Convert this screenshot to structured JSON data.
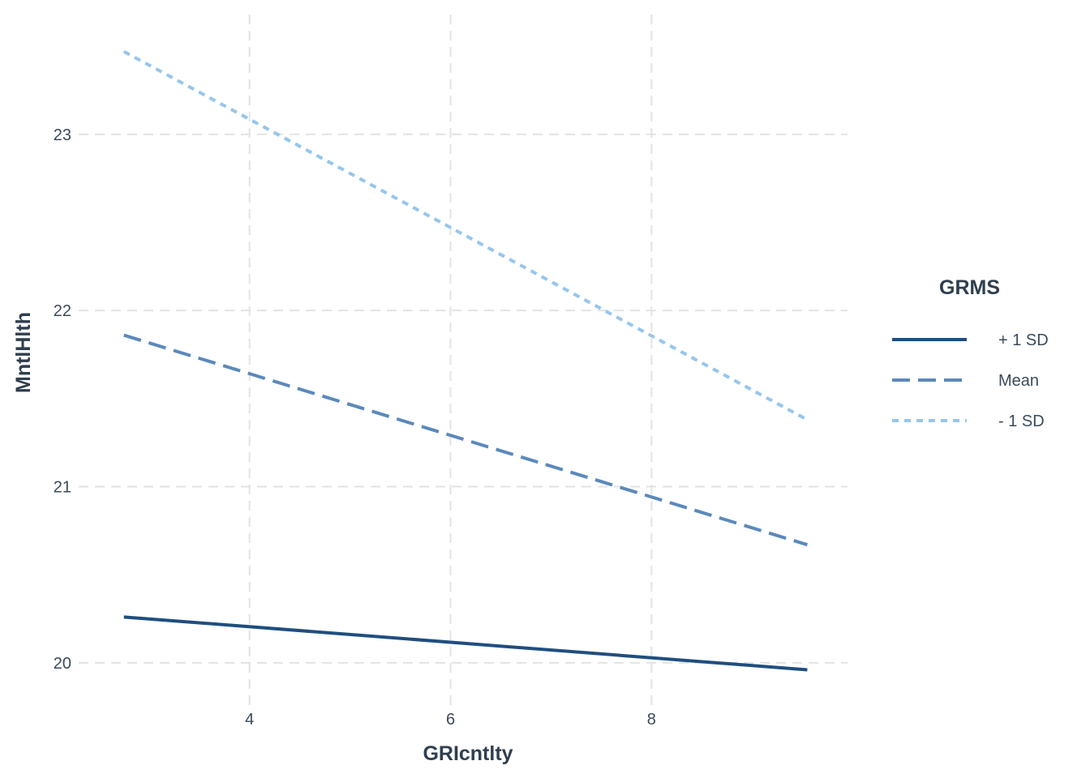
{
  "chart_data": {
    "type": "line",
    "xlabel": "GRIcntlty",
    "ylabel": "MntlHlth",
    "xlim": [
      2.3,
      9.95
    ],
    "ylim": [
      19.76,
      23.68
    ],
    "x_ticks": [
      4,
      6,
      8
    ],
    "y_ticks": [
      20,
      21,
      22,
      23
    ],
    "grid": true,
    "legend": {
      "title": "GRMS",
      "position": "right"
    },
    "series": [
      {
        "name": "+ 1 SD",
        "color": "#1f4e7f",
        "dash": "solid",
        "x": [
          2.75,
          9.55
        ],
        "y": [
          20.26,
          19.96
        ]
      },
      {
        "name": "Mean",
        "color": "#5b89bb",
        "dash": "dashed",
        "x": [
          2.75,
          9.55
        ],
        "y": [
          21.86,
          20.67
        ]
      },
      {
        "name": "- 1 SD",
        "color": "#96c6ec",
        "dash": "dotted",
        "x": [
          2.75,
          9.55
        ],
        "y": [
          23.47,
          21.38
        ]
      }
    ]
  }
}
